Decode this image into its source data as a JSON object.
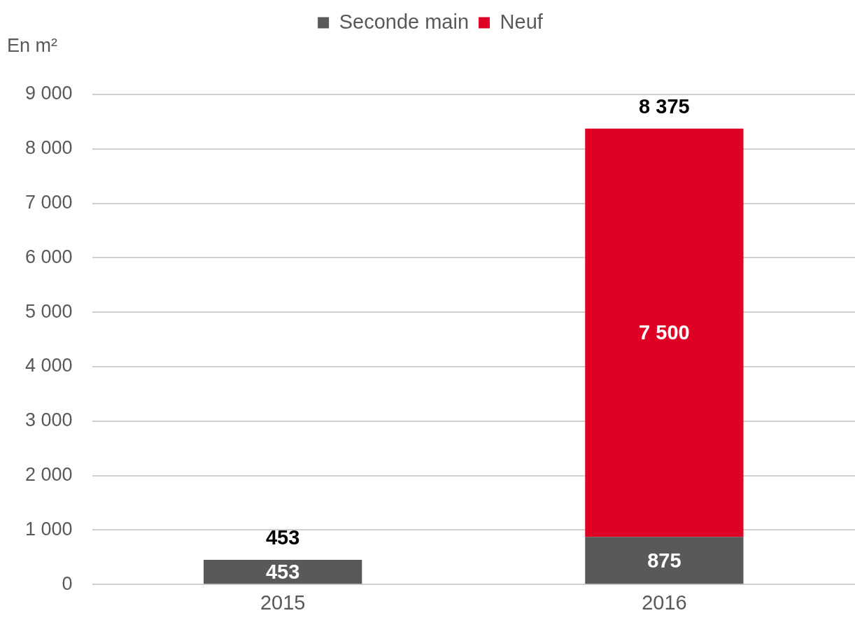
{
  "chart_data": {
    "type": "bar",
    "stacked": true,
    "ylabel": "En m²",
    "categories": [
      "2015",
      "2016"
    ],
    "series": [
      {
        "name": "Seconde main",
        "color": "#595959",
        "values": [
          453,
          875
        ],
        "value_labels": [
          "453",
          "875"
        ]
      },
      {
        "name": "Neuf",
        "color": "#e00025",
        "values": [
          null,
          7500
        ],
        "value_labels": [
          null,
          "7 500"
        ]
      }
    ],
    "totals": [
      "453",
      "8 375"
    ],
    "ylim": [
      0,
      9000
    ],
    "yticks": [
      0,
      {
        "value": 1000,
        "label": "1 000"
      },
      {
        "value": 2000,
        "label": "2 000"
      },
      {
        "value": 3000,
        "label": "3 000"
      },
      {
        "value": 4000,
        "label": "4 000"
      },
      {
        "value": 5000,
        "label": "5 000"
      },
      {
        "value": 6000,
        "label": "6 000"
      },
      {
        "value": 7000,
        "label": "7 000"
      },
      {
        "value": 8000,
        "label": "8 000"
      },
      {
        "value": 9000,
        "label": "9 000"
      }
    ],
    "grid": "y",
    "legend": "top"
  }
}
